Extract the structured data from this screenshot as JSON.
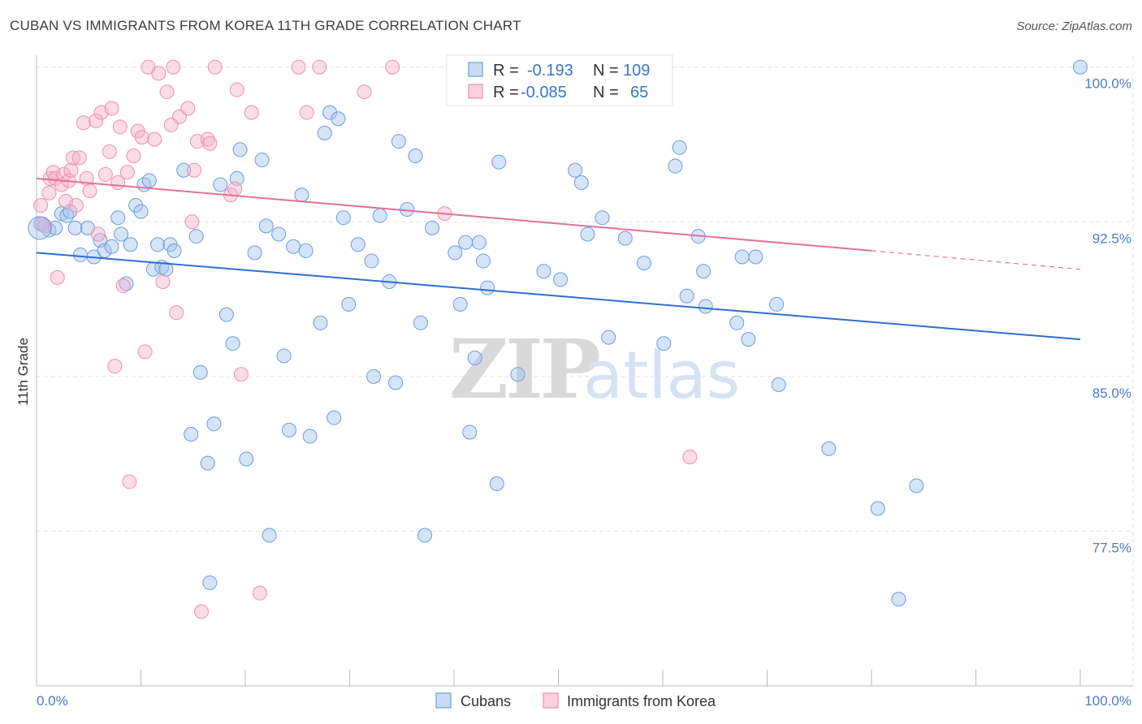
{
  "header": {
    "title": "CUBAN VS IMMIGRANTS FROM KOREA 11TH GRADE CORRELATION CHART",
    "source": "Source: ZipAtlas.com"
  },
  "chart_data": {
    "type": "scatter",
    "ylabel": "11th Grade",
    "x_tick_labels": [
      "0.0%",
      "100.0%"
    ],
    "y_tick_labels": [
      "100.0%",
      "92.5%",
      "85.0%",
      "77.5%"
    ],
    "y_ticks": [
      100.0,
      92.5,
      85.0,
      77.5
    ],
    "xlim": [
      0,
      100
    ],
    "ylim": [
      70.0,
      100.5
    ],
    "grid": true,
    "watermark": "ZIPatlas",
    "legend": [
      {
        "label": "R =",
        "r": "-0.193",
        "n_label": "N =",
        "n": "109",
        "color": "#6c9be0"
      },
      {
        "label": "R =",
        "r": "-0.085",
        "n_label": "N =",
        "n": "65",
        "color": "#ee8fae"
      }
    ],
    "series": [
      {
        "name": "Cubans",
        "color": "#6c9be0",
        "fill": "rgba(165,196,240,0.45)",
        "trend": {
          "x0": 0,
          "y0": 91.0,
          "x1": 100,
          "y1": 86.8
        },
        "points": [
          [
            0.4,
            92.4
          ],
          [
            0.8,
            92.3
          ],
          [
            1.2,
            92.1
          ],
          [
            1.8,
            92.2
          ],
          [
            2.4,
            92.9
          ],
          [
            2.9,
            92.8
          ],
          [
            3.2,
            93.0
          ],
          [
            3.7,
            92.2
          ],
          [
            4.2,
            90.9
          ],
          [
            4.9,
            92.2
          ],
          [
            5.5,
            90.8
          ],
          [
            6.1,
            91.6
          ],
          [
            6.5,
            91.1
          ],
          [
            7.2,
            91.3
          ],
          [
            7.8,
            92.7
          ],
          [
            8.1,
            91.9
          ],
          [
            8.6,
            89.5
          ],
          [
            9.0,
            91.4
          ],
          [
            9.5,
            93.3
          ],
          [
            10.0,
            93.0
          ],
          [
            10.3,
            94.3
          ],
          [
            10.8,
            94.5
          ],
          [
            11.2,
            90.2
          ],
          [
            11.6,
            91.4
          ],
          [
            12.0,
            90.3
          ],
          [
            12.4,
            90.2
          ],
          [
            12.8,
            91.4
          ],
          [
            13.2,
            91.1
          ],
          [
            14.1,
            95.0
          ],
          [
            14.8,
            82.2
          ],
          [
            15.3,
            91.8
          ],
          [
            15.7,
            85.2
          ],
          [
            16.4,
            80.8
          ],
          [
            16.6,
            75.0
          ],
          [
            17.0,
            82.7
          ],
          [
            17.6,
            94.3
          ],
          [
            18.2,
            88.0
          ],
          [
            18.8,
            86.6
          ],
          [
            19.2,
            94.6
          ],
          [
            19.5,
            96.0
          ],
          [
            20.1,
            81.0
          ],
          [
            20.9,
            91.0
          ],
          [
            21.6,
            95.5
          ],
          [
            22.0,
            92.3
          ],
          [
            22.3,
            77.3
          ],
          [
            23.2,
            91.9
          ],
          [
            23.7,
            86.0
          ],
          [
            24.2,
            82.4
          ],
          [
            24.6,
            91.3
          ],
          [
            25.4,
            93.8
          ],
          [
            25.8,
            91.1
          ],
          [
            26.2,
            82.1
          ],
          [
            27.2,
            87.6
          ],
          [
            27.6,
            96.8
          ],
          [
            28.1,
            97.8
          ],
          [
            28.5,
            83.0
          ],
          [
            28.9,
            97.5
          ],
          [
            29.4,
            92.7
          ],
          [
            29.9,
            88.5
          ],
          [
            30.8,
            91.4
          ],
          [
            32.1,
            90.6
          ],
          [
            32.3,
            85.0
          ],
          [
            32.9,
            92.8
          ],
          [
            33.8,
            89.6
          ],
          [
            34.4,
            84.7
          ],
          [
            34.7,
            96.4
          ],
          [
            35.5,
            93.1
          ],
          [
            36.3,
            95.7
          ],
          [
            36.8,
            87.6
          ],
          [
            37.2,
            77.3
          ],
          [
            37.9,
            92.2
          ],
          [
            40.1,
            91.0
          ],
          [
            40.6,
            88.5
          ],
          [
            41.1,
            91.5
          ],
          [
            41.5,
            82.3
          ],
          [
            42.0,
            85.9
          ],
          [
            42.4,
            91.5
          ],
          [
            42.8,
            90.6
          ],
          [
            43.2,
            89.3
          ],
          [
            44.1,
            79.8
          ],
          [
            44.3,
            95.4
          ],
          [
            46.1,
            85.1
          ],
          [
            48.6,
            90.1
          ],
          [
            50.2,
            89.7
          ],
          [
            51.6,
            95.0
          ],
          [
            52.2,
            94.4
          ],
          [
            52.8,
            91.9
          ],
          [
            54.2,
            92.7
          ],
          [
            54.8,
            86.9
          ],
          [
            56.4,
            91.7
          ],
          [
            58.2,
            90.5
          ],
          [
            60.1,
            86.6
          ],
          [
            61.2,
            95.2
          ],
          [
            61.6,
            96.1
          ],
          [
            62.3,
            88.9
          ],
          [
            63.4,
            91.8
          ],
          [
            63.9,
            90.1
          ],
          [
            64.1,
            88.4
          ],
          [
            67.1,
            87.6
          ],
          [
            67.6,
            90.8
          ],
          [
            68.2,
            86.8
          ],
          [
            68.9,
            90.8
          ],
          [
            70.9,
            88.5
          ],
          [
            71.1,
            84.6
          ],
          [
            75.9,
            81.5
          ],
          [
            80.6,
            78.6
          ],
          [
            82.6,
            74.2
          ],
          [
            84.3,
            79.7
          ],
          [
            100.0,
            100.0
          ]
        ]
      },
      {
        "name": "Immigrants from Korea",
        "color": "#ee8fae",
        "fill": "rgba(244,178,199,0.45)",
        "trend": {
          "x0": 0,
          "y0": 94.6,
          "x1": 80,
          "y1": 91.1,
          "dash_x1": 100,
          "dash_y1": 90.2
        },
        "points": [
          [
            0.4,
            93.3
          ],
          [
            0.6,
            92.4
          ],
          [
            0.8,
            92.3
          ],
          [
            1.2,
            93.9
          ],
          [
            1.3,
            94.6
          ],
          [
            1.6,
            94.9
          ],
          [
            1.8,
            94.6
          ],
          [
            2.0,
            89.8
          ],
          [
            2.4,
            94.3
          ],
          [
            2.6,
            94.8
          ],
          [
            2.8,
            93.5
          ],
          [
            3.1,
            94.5
          ],
          [
            3.3,
            95.0
          ],
          [
            3.5,
            95.6
          ],
          [
            3.8,
            93.3
          ],
          [
            4.1,
            95.6
          ],
          [
            4.5,
            97.3
          ],
          [
            4.8,
            94.6
          ],
          [
            5.1,
            94.0
          ],
          [
            5.7,
            97.4
          ],
          [
            5.9,
            91.9
          ],
          [
            6.2,
            97.8
          ],
          [
            6.6,
            94.8
          ],
          [
            7.0,
            95.9
          ],
          [
            7.2,
            98.0
          ],
          [
            7.5,
            85.5
          ],
          [
            7.8,
            94.4
          ],
          [
            8.0,
            97.1
          ],
          [
            8.3,
            89.4
          ],
          [
            8.7,
            94.9
          ],
          [
            8.9,
            79.9
          ],
          [
            9.3,
            95.7
          ],
          [
            9.7,
            96.9
          ],
          [
            10.1,
            96.6
          ],
          [
            10.4,
            86.2
          ],
          [
            10.7,
            100.0
          ],
          [
            11.3,
            96.5
          ],
          [
            11.7,
            99.7
          ],
          [
            12.1,
            89.6
          ],
          [
            12.5,
            98.8
          ],
          [
            12.9,
            97.2
          ],
          [
            13.1,
            100.0
          ],
          [
            13.4,
            88.1
          ],
          [
            13.7,
            97.6
          ],
          [
            14.5,
            98.0
          ],
          [
            14.9,
            92.5
          ],
          [
            15.1,
            95.0
          ],
          [
            15.4,
            96.4
          ],
          [
            15.8,
            73.6
          ],
          [
            16.4,
            96.5
          ],
          [
            16.6,
            96.3
          ],
          [
            17.1,
            100.0
          ],
          [
            18.6,
            93.8
          ],
          [
            19.0,
            94.1
          ],
          [
            19.2,
            98.9
          ],
          [
            19.6,
            85.1
          ],
          [
            20.6,
            97.8
          ],
          [
            21.4,
            74.5
          ],
          [
            25.1,
            100.0
          ],
          [
            25.9,
            97.8
          ],
          [
            27.1,
            100.0
          ],
          [
            31.4,
            98.8
          ],
          [
            34.1,
            100.0
          ],
          [
            39.1,
            92.9
          ],
          [
            62.6,
            81.1
          ]
        ]
      }
    ]
  },
  "bottom_legend": {
    "cubans": "Cubans",
    "korea": "Immigrants from Korea"
  }
}
